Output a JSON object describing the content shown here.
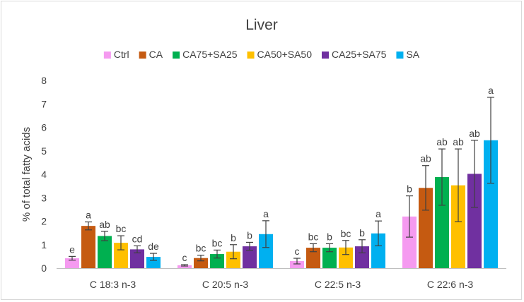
{
  "chart_data": {
    "type": "bar",
    "title": "Liver",
    "xlabel": "",
    "ylabel": "% of total fatty acids",
    "ylim": [
      0,
      8
    ],
    "yticks": [
      0,
      1,
      2,
      3,
      4,
      5,
      6,
      7,
      8
    ],
    "grid": false,
    "legend_position": "top",
    "categories": [
      "C 18:3 n-3",
      "C 20:5 n-3",
      "C 22:5 n-3",
      "C 22:6 n-3"
    ],
    "series": [
      {
        "name": "Ctrl",
        "color": "#f59af0",
        "values": [
          0.42,
          0.12,
          0.3,
          2.2
        ],
        "errors": [
          0.08,
          0.03,
          0.12,
          0.88
        ],
        "letters": [
          "e",
          "c",
          "c",
          "b"
        ]
      },
      {
        "name": "CA",
        "color": "#c55a11",
        "values": [
          1.8,
          0.43,
          0.87,
          3.42
        ],
        "errors": [
          0.17,
          0.12,
          0.17,
          0.95
        ],
        "letters": [
          "a",
          "bc",
          "bc",
          "ab"
        ]
      },
      {
        "name": "CA75+SA25",
        "color": "#00b050",
        "values": [
          1.37,
          0.6,
          0.87,
          3.88
        ],
        "errors": [
          0.2,
          0.17,
          0.17,
          1.2
        ],
        "letters": [
          "ab",
          "bc",
          "b",
          "ab"
        ]
      },
      {
        "name": "CA50+SA50",
        "color": "#ffc000",
        "values": [
          1.08,
          0.7,
          0.88,
          3.53
        ],
        "errors": [
          0.3,
          0.3,
          0.3,
          1.55
        ],
        "letters": [
          "bc",
          "b",
          "bc",
          "ab"
        ]
      },
      {
        "name": "CA25+SA75",
        "color": "#7030a0",
        "values": [
          0.8,
          0.93,
          0.93,
          4.02
        ],
        "errors": [
          0.15,
          0.17,
          0.28,
          1.43
        ],
        "letters": [
          "cd",
          "b",
          "b",
          "ab"
        ]
      },
      {
        "name": "SA",
        "color": "#00b0f0",
        "values": [
          0.48,
          1.45,
          1.48,
          5.45
        ],
        "errors": [
          0.15,
          0.57,
          0.53,
          1.83
        ],
        "letters": [
          "de",
          "a",
          "a",
          "a"
        ]
      }
    ]
  }
}
